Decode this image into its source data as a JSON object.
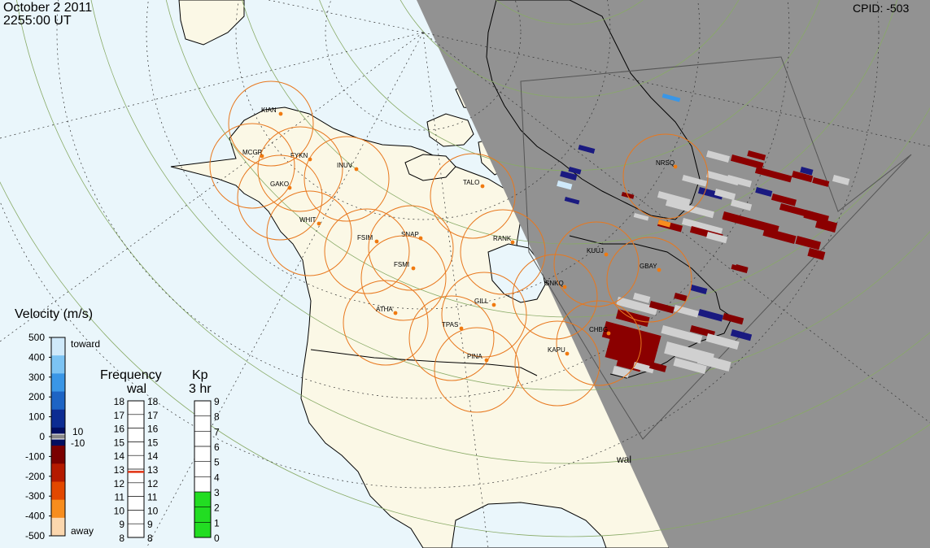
{
  "header": {
    "date": "October  2 2011",
    "time": "2255:00 UT",
    "cpid": "CPID:  -503"
  },
  "radar_label": "wal",
  "stations": [
    {
      "code": "KIAN",
      "label_code": "KIAN"
    },
    {
      "code": "MCGR",
      "label_code": "MCGR"
    },
    {
      "code": "FYKN",
      "label_code": "FYKN"
    },
    {
      "code": "INUV",
      "label_code": "INUV"
    },
    {
      "code": "GAKO",
      "label_code": "GAKO"
    },
    {
      "code": "WHIT",
      "label_code": "WHIT"
    },
    {
      "code": "TALO",
      "label_code": "TALO"
    },
    {
      "code": "FSIM",
      "label_code": "FSIM"
    },
    {
      "code": "SNAP",
      "label_code": "SNAP"
    },
    {
      "code": "FSMI",
      "label_code": "FSMI"
    },
    {
      "code": "RANK",
      "label_code": "RANK"
    },
    {
      "code": "NRSQ",
      "label_code": "NRSQ"
    },
    {
      "code": "KUUJ",
      "label_code": "KUUJ"
    },
    {
      "code": "GBAY",
      "label_code": "GBAY"
    },
    {
      "code": "SNKQ",
      "label_code": "SNKQ"
    },
    {
      "code": "ATHA",
      "label_code": "ATHA"
    },
    {
      "code": "GILL",
      "label_code": "GILL"
    },
    {
      "code": "TPAS",
      "label_code": "TPAS"
    },
    {
      "code": "CHBG",
      "label_code": "CHBG"
    },
    {
      "code": "KAPU",
      "label_code": "KAPU"
    },
    {
      "code": "PINA",
      "label_code": "PINA"
    }
  ],
  "velocity_scale": {
    "title": "Velocity (m/s)",
    "ticks": [
      "500",
      "400",
      "300",
      "200",
      "100",
      "0",
      "-100",
      "-200",
      "-300",
      "-400",
      "-500"
    ],
    "toward_label": "toward",
    "away_label": "away",
    "gs_pos": "10",
    "gs_neg": "-10",
    "colors": [
      "#cfe9fa",
      "#7cc3f3",
      "#3a96e6",
      "#1d64c4",
      "#0c2c92",
      "#020e60",
      "#7a0000",
      "#b41a00",
      "#e24800",
      "#f78d1e",
      "#fbd7ae"
    ]
  },
  "frequency_scale": {
    "title": "Frequency",
    "subtitle": "wal",
    "ticks": [
      "18",
      "17",
      "16",
      "15",
      "14",
      "13",
      "12",
      "11",
      "10",
      "9",
      "8"
    ],
    "value_mhz": 12.8,
    "marker_color": "#e03010"
  },
  "kp_scale": {
    "title": "Kp",
    "subtitle": "3 hr",
    "ticks": [
      "9",
      "8",
      "7",
      "6",
      "5",
      "4",
      "3",
      "2",
      "1",
      "0"
    ],
    "value": 3,
    "fill_color": "#22dd22"
  },
  "colors": {
    "ocean": "#eaf6fb",
    "land": "#fbf8e6",
    "night_shade": "#929292",
    "fov_circle": "#e8781e",
    "station_dot": "#f07a10",
    "grid": "#88aa66"
  }
}
